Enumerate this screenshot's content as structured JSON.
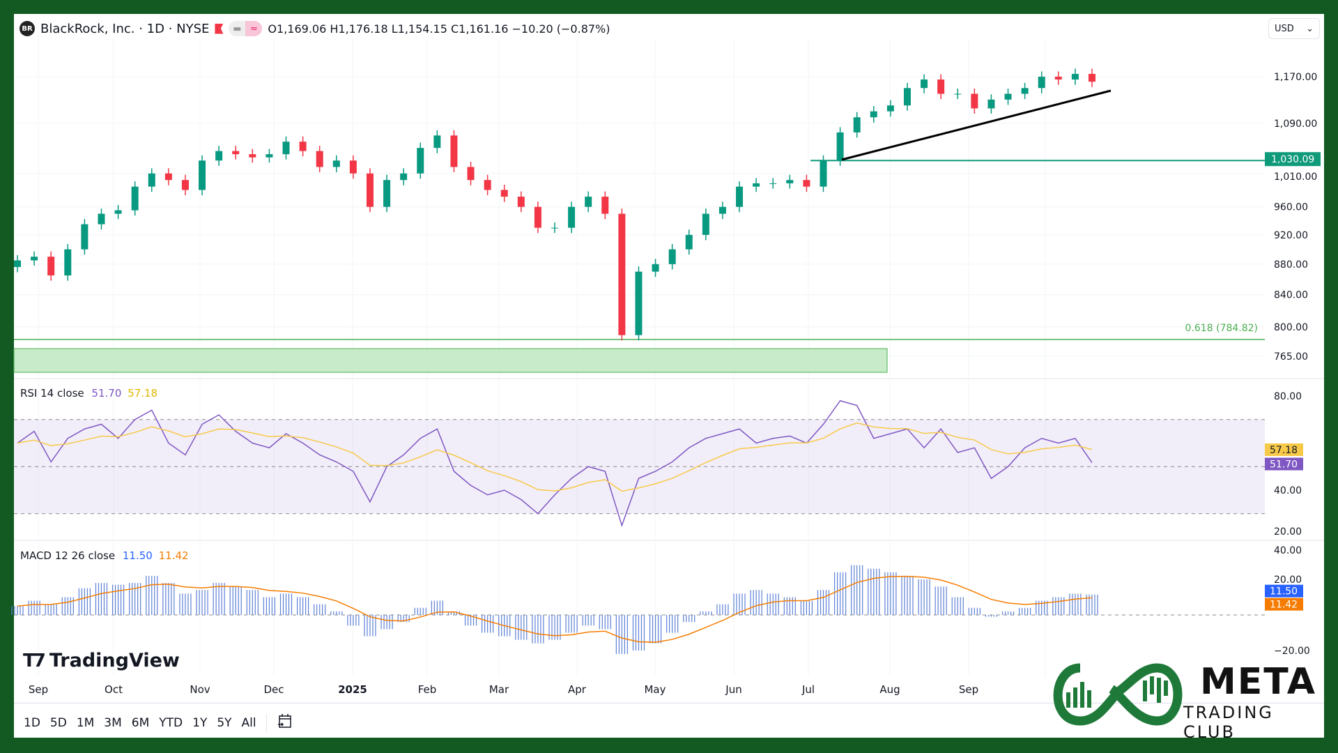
{
  "header": {
    "symbol_icon": "BR",
    "title": "BlackRock, Inc. · 1D · NYSE",
    "ohlc": "O1,169.06 H1,176.18 L1,154.15 C1,161.16 −10.20 (−0.87%)"
  },
  "currency": "USD",
  "colors": {
    "up": "#089981",
    "down": "#f23645",
    "rsi": "#7e57c2",
    "rsi_ma": "#f7c948",
    "macd": "#2962ff",
    "signal": "#f57c00",
    "level": "#0f9a7a",
    "fib": "#4caf50",
    "border": "#125a22"
  },
  "price_axis": {
    "labels": [
      "1,170.00",
      "1,090.00",
      "1,010.00",
      "960.00",
      "920.00",
      "880.00",
      "840.00",
      "800.00",
      "765.00"
    ],
    "values": [
      1170,
      1090,
      1010,
      960,
      920,
      880,
      840,
      800,
      765
    ]
  },
  "annotations": {
    "level_label": "1,030.09",
    "level_value": 1030.09,
    "fib_label": "0.618 (784.82)",
    "fib_value": 784.82
  },
  "rsi": {
    "label": "RSI 14 close",
    "value": "51.70",
    "ma_value": "57.18",
    "axis": [
      "80.00",
      "40.00",
      "20.00"
    ]
  },
  "macd": {
    "label": "MACD 12 26 close",
    "value": "11.50",
    "signal_value": "11.42",
    "axis": [
      "40.00",
      "20.00",
      "−20.00"
    ]
  },
  "time_axis": [
    "Sep",
    "Oct",
    "Nov",
    "Dec",
    "2025",
    "Feb",
    "Mar",
    "Apr",
    "May",
    "Jun",
    "Jul",
    "Aug",
    "Sep"
  ],
  "branding": {
    "tradingview": "TradingView",
    "meta": "META",
    "meta_sub": "TRADING CLUB"
  },
  "toolbar": [
    "1D",
    "5D",
    "1M",
    "3M",
    "6M",
    "YTD",
    "1Y",
    "5Y",
    "All"
  ],
  "chart_data": {
    "type": "candlestick",
    "title": "BlackRock, Inc. · 1D · NYSE",
    "x_range": [
      "2024-08-19",
      "2025-10-10"
    ],
    "ylim": [
      765,
      1190
    ],
    "closes": [
      885,
      890,
      865,
      900,
      935,
      950,
      955,
      990,
      1010,
      1000,
      985,
      1030,
      1045,
      1040,
      1035,
      1040,
      1060,
      1045,
      1020,
      1030,
      1010,
      960,
      1000,
      1010,
      1050,
      1070,
      1020,
      1000,
      985,
      975,
      960,
      930,
      930,
      960,
      975,
      950,
      790,
      870,
      880,
      900,
      920,
      950,
      960,
      990,
      995,
      995,
      1000,
      990,
      1030,
      1075,
      1100,
      1110,
      1120,
      1150,
      1165,
      1140,
      1140,
      1115,
      1130,
      1140,
      1150,
      1170,
      1165,
      1175,
      1161.16
    ],
    "rsi": [
      60,
      65,
      52,
      62,
      66,
      68,
      62,
      70,
      74,
      60,
      55,
      68,
      72,
      65,
      60,
      58,
      64,
      60,
      55,
      52,
      48,
      35,
      50,
      55,
      62,
      66,
      48,
      42,
      38,
      40,
      36,
      30,
      38,
      45,
      50,
      48,
      25,
      45,
      48,
      52,
      58,
      62,
      64,
      66,
      60,
      62,
      63,
      60,
      68,
      78,
      76,
      62,
      64,
      66,
      58,
      66,
      56,
      58,
      45,
      50,
      58,
      62,
      60,
      62,
      51.7
    ],
    "macd": [
      5,
      8,
      6,
      10,
      15,
      18,
      17,
      18,
      22,
      18,
      12,
      14,
      18,
      16,
      14,
      10,
      12,
      10,
      6,
      2,
      -6,
      -12,
      -8,
      -4,
      4,
      8,
      2,
      -6,
      -10,
      -12,
      -14,
      -16,
      -14,
      -10,
      -6,
      -8,
      -22,
      -20,
      -16,
      -10,
      -4,
      2,
      6,
      12,
      14,
      12,
      10,
      8,
      14,
      24,
      28,
      26,
      24,
      22,
      20,
      16,
      10,
      4,
      -1,
      2,
      4,
      8,
      10,
      12,
      11.5
    ]
  }
}
